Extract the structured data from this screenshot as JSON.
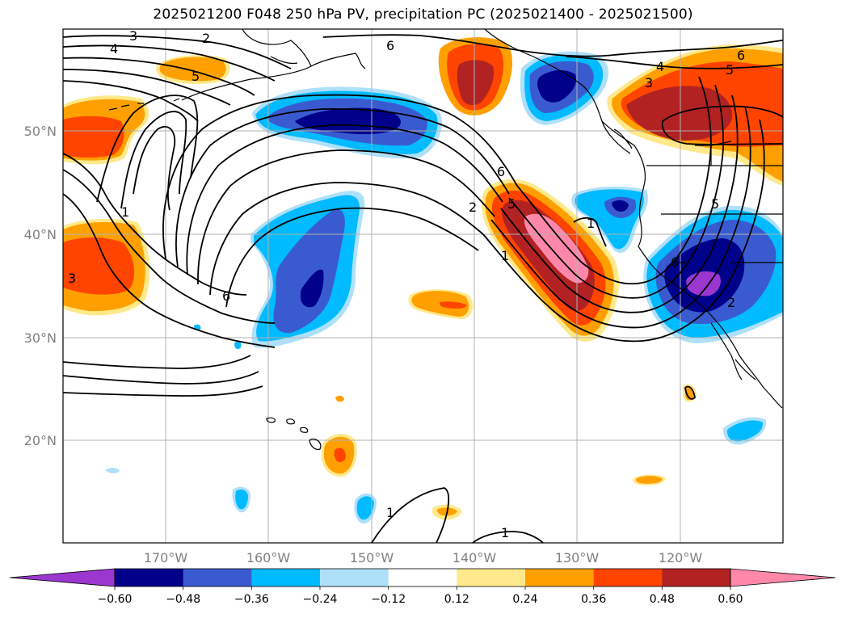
{
  "title": "2025021200 F048 250 hPa PV, precipitation PC (2025021400 - 2025021500)",
  "chart_data": {
    "type": "map",
    "title": "2025021200 F048 250 hPa PV, precipitation PC (2025021400 - 2025021500)",
    "lon_ticks": [
      "170°W",
      "160°W",
      "150°W",
      "140°W",
      "130°W",
      "120°W"
    ],
    "lat_ticks": [
      "50°N",
      "40°N",
      "30°N",
      "20°N"
    ],
    "lon_values": [
      -170,
      -160,
      -150,
      -140,
      -130,
      -120
    ],
    "lat_values": [
      50,
      40,
      30,
      20
    ],
    "grid": true,
    "colorbar": {
      "ticks": [
        "−0.60",
        "−0.48",
        "−0.36",
        "−0.24",
        "−0.12",
        "0.12",
        "0.24",
        "0.36",
        "0.48",
        "0.60"
      ],
      "tick_values": [
        -0.6,
        -0.48,
        -0.36,
        -0.24,
        -0.12,
        0.12,
        0.24,
        0.36,
        0.48,
        0.6
      ],
      "colors": [
        "#9b36cf",
        "#00008b",
        "#3a5bd0",
        "#00bbff",
        "#afe0fa",
        "#ffffff",
        "#ffe98a",
        "#ffa000",
        "#ff4400",
        "#b22222",
        "#ff88aa"
      ],
      "extend": "both"
    },
    "contour_labels": [
      "3",
      "2",
      "4",
      "5",
      "6",
      "6",
      "5",
      "4",
      "3",
      "5",
      "6",
      "1",
      "1",
      "2",
      "3",
      "6",
      "5",
      "6",
      "2",
      "1",
      "1",
      "1"
    ]
  }
}
